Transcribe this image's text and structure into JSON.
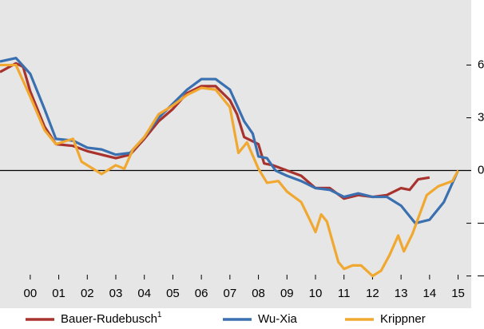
{
  "chart_data": {
    "type": "line",
    "xlim": [
      1998.94,
      2015.46
    ],
    "xticks": [
      {
        "value": 2000,
        "label": "00"
      },
      {
        "value": 2001,
        "label": "01"
      },
      {
        "value": 2002,
        "label": "02"
      },
      {
        "value": 2003,
        "label": "03"
      },
      {
        "value": 2004,
        "label": "04"
      },
      {
        "value": 2005,
        "label": "05"
      },
      {
        "value": 2006,
        "label": "06"
      },
      {
        "value": 2007,
        "label": "07"
      },
      {
        "value": 2008,
        "label": "08"
      },
      {
        "value": 2009,
        "label": "09"
      },
      {
        "value": 2010,
        "label": "10"
      },
      {
        "value": 2011,
        "label": "11"
      },
      {
        "value": 2012,
        "label": "12"
      },
      {
        "value": 2013,
        "label": "13"
      },
      {
        "value": 2014,
        "label": "14"
      },
      {
        "value": 2015,
        "label": "15"
      }
    ],
    "ylim": [
      -6.2,
      9.7
    ],
    "yticks": [
      6,
      3,
      0,
      {
        "value": -3,
        "label": "–3"
      },
      {
        "value": -6,
        "label": "–6"
      }
    ],
    "zero_line": true,
    "series": [
      {
        "name": "Bauer-Rudebusch",
        "footnote": "1",
        "color": "#a8322d",
        "x": [
          1998.94,
          1999.5,
          1999.75,
          2000,
          2000.5,
          2000.9,
          2001.5,
          2002,
          2002.5,
          2003,
          2003.5,
          2004,
          2004.5,
          2005,
          2005.5,
          2006,
          2006.5,
          2007,
          2007.25,
          2007.5,
          2008,
          2008.2,
          2008.5,
          2009,
          2009.5,
          2010,
          2010.5,
          2011,
          2011.5,
          2012,
          2012.5,
          2013,
          2013.3,
          2013.6,
          2014
        ],
        "values": [
          5.6,
          6.1,
          5.9,
          4.5,
          2.5,
          1.5,
          1.4,
          1.1,
          0.9,
          0.7,
          0.9,
          1.8,
          2.8,
          3.5,
          4.4,
          4.8,
          4.8,
          4.0,
          3.2,
          1.9,
          1.5,
          0.4,
          0.3,
          0.0,
          -0.3,
          -1.0,
          -1.0,
          -1.6,
          -1.4,
          -1.5,
          -1.4,
          -1.0,
          -1.1,
          -0.5,
          -0.4
        ]
      },
      {
        "name": "Wu-Xia",
        "color": "#3a6fb0",
        "x": [
          1998.94,
          1999.5,
          2000,
          2000.5,
          2000.9,
          2001.5,
          2002,
          2002.5,
          2003,
          2003.5,
          2004,
          2004.5,
          2005,
          2005.5,
          2006,
          2006.5,
          2007,
          2007.5,
          2007.8,
          2008,
          2008.3,
          2008.6,
          2009,
          2009.5,
          2010,
          2010.5,
          2011,
          2011.5,
          2012,
          2012.5,
          2013,
          2013.5,
          2014,
          2014.5,
          2015
        ],
        "values": [
          6.2,
          6.4,
          5.5,
          3.5,
          1.8,
          1.7,
          1.3,
          1.2,
          0.9,
          1.0,
          1.9,
          3.0,
          3.8,
          4.6,
          5.2,
          5.2,
          4.6,
          2.8,
          2.1,
          0.8,
          0.7,
          0.0,
          -0.3,
          -0.6,
          -1.0,
          -1.1,
          -1.5,
          -1.3,
          -1.5,
          -1.5,
          -2.0,
          -3.0,
          -2.8,
          -1.8,
          0.0
        ]
      },
      {
        "name": "Krippner",
        "color": "#f0a830",
        "x": [
          1998.94,
          1999.5,
          2000,
          2000.5,
          2000.9,
          2001.5,
          2001.8,
          2002.5,
          2003,
          2003.3,
          2003.6,
          2004,
          2004.5,
          2005,
          2005.5,
          2006,
          2006.5,
          2007,
          2007.3,
          2007.6,
          2008,
          2008.3,
          2008.7,
          2009,
          2009.5,
          2009.8,
          2010,
          2010.2,
          2010.4,
          2010.8,
          2011,
          2011.3,
          2011.6,
          2012,
          2012.3,
          2012.6,
          2012.9,
          2013.1,
          2013.4,
          2013.9,
          2014.3,
          2014.8,
          2015
        ],
        "values": [
          6.0,
          6.0,
          4.2,
          2.3,
          1.5,
          1.8,
          0.5,
          -0.2,
          0.3,
          0.1,
          1.2,
          1.9,
          3.2,
          3.7,
          4.3,
          4.7,
          4.6,
          3.6,
          1.0,
          1.6,
          0.1,
          -0.7,
          -0.6,
          -1.2,
          -1.8,
          -2.8,
          -3.5,
          -2.5,
          -2.9,
          -5.2,
          -5.6,
          -5.4,
          -5.4,
          -6.0,
          -5.7,
          -4.8,
          -3.7,
          -4.6,
          -3.6,
          -1.4,
          -0.9,
          -0.6,
          0.0
        ]
      }
    ]
  }
}
